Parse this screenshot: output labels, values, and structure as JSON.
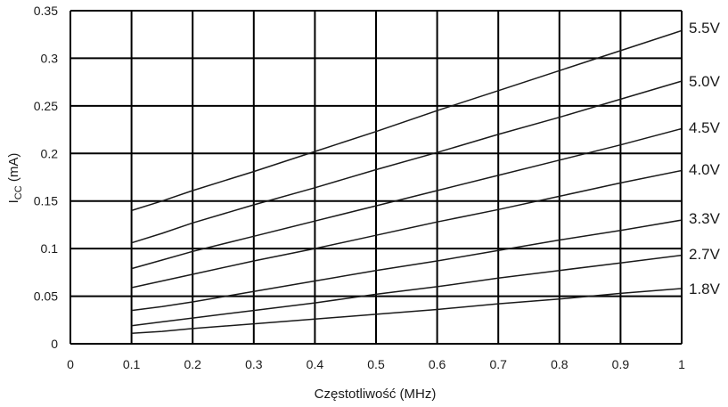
{
  "chart_data": {
    "type": "line",
    "xlabel": "Częstotliwość (MHz)",
    "ylabel": {
      "main": "I",
      "sub": "CC",
      "unit": " (mA)"
    },
    "xlim": [
      0,
      1
    ],
    "ylim": [
      0,
      0.35
    ],
    "x_ticks": [
      "0",
      "0.1",
      "0.2",
      "0.3",
      "0.4",
      "0.5",
      "0.6",
      "0.7",
      "0.8",
      "0.9",
      "1"
    ],
    "y_ticks": [
      "0",
      "0.05",
      "0.1",
      "0.15",
      "0.2",
      "0.25",
      "0.3",
      "0.35"
    ],
    "grid": true,
    "legend": "series labels at right edge",
    "series": [
      {
        "name": "5.5V",
        "x": [
          0.1,
          0.15,
          0.2,
          0.3,
          0.4,
          0.5,
          0.6,
          0.7,
          0.8,
          0.9,
          1.0
        ],
        "values": [
          0.14,
          0.15,
          0.161,
          0.181,
          0.202,
          0.223,
          0.245,
          0.266,
          0.287,
          0.308,
          0.329
        ]
      },
      {
        "name": "5.0V",
        "x": [
          0.1,
          0.15,
          0.2,
          0.3,
          0.4,
          0.5,
          0.6,
          0.7,
          0.8,
          0.9,
          1.0
        ],
        "values": [
          0.106,
          0.116,
          0.127,
          0.146,
          0.164,
          0.183,
          0.201,
          0.22,
          0.238,
          0.257,
          0.276
        ]
      },
      {
        "name": "4.5V",
        "x": [
          0.1,
          0.15,
          0.2,
          0.3,
          0.4,
          0.5,
          0.6,
          0.7,
          0.8,
          0.9,
          1.0
        ],
        "values": [
          0.079,
          0.088,
          0.097,
          0.113,
          0.129,
          0.145,
          0.161,
          0.177,
          0.193,
          0.209,
          0.226
        ]
      },
      {
        "name": "4.0V",
        "x": [
          0.1,
          0.15,
          0.2,
          0.3,
          0.4,
          0.5,
          0.6,
          0.7,
          0.8,
          0.9,
          1.0
        ],
        "values": [
          0.059,
          0.066,
          0.073,
          0.087,
          0.1,
          0.114,
          0.128,
          0.141,
          0.155,
          0.169,
          0.182
        ]
      },
      {
        "name": "3.3V",
        "x": [
          0.1,
          0.15,
          0.2,
          0.3,
          0.4,
          0.5,
          0.6,
          0.7,
          0.8,
          0.9,
          1.0
        ],
        "values": [
          0.035,
          0.039,
          0.044,
          0.055,
          0.066,
          0.077,
          0.087,
          0.098,
          0.109,
          0.119,
          0.13
        ]
      },
      {
        "name": "2.7V",
        "x": [
          0.1,
          0.15,
          0.2,
          0.3,
          0.4,
          0.5,
          0.6,
          0.7,
          0.8,
          0.9,
          1.0
        ],
        "values": [
          0.019,
          0.023,
          0.027,
          0.035,
          0.043,
          0.052,
          0.06,
          0.069,
          0.077,
          0.085,
          0.093
        ]
      },
      {
        "name": "1.8V",
        "x": [
          0.1,
          0.15,
          0.2,
          0.3,
          0.4,
          0.5,
          0.6,
          0.7,
          0.8,
          0.9,
          1.0
        ],
        "values": [
          0.011,
          0.013,
          0.016,
          0.021,
          0.026,
          0.031,
          0.036,
          0.042,
          0.047,
          0.053,
          0.058
        ]
      }
    ]
  }
}
